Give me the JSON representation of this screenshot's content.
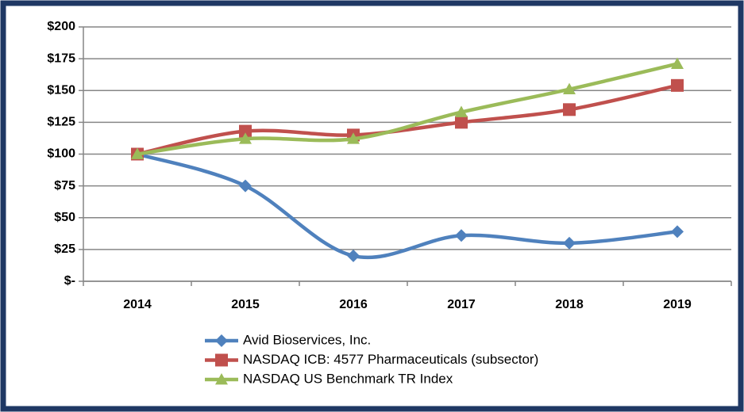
{
  "chart_data": {
    "type": "line",
    "categories": [
      "2014",
      "2015",
      "2016",
      "2017",
      "2018",
      "2019"
    ],
    "series": [
      {
        "name": "Avid Bioservices, Inc.",
        "color": "#4f81bd",
        "marker": "diamond",
        "values": [
          100,
          75,
          20,
          36,
          30,
          39
        ]
      },
      {
        "name": "NASDAQ ICB: 4577 Pharmaceuticals (subsector)",
        "color": "#c0504d",
        "marker": "square",
        "values": [
          100,
          118,
          115,
          125,
          135,
          154
        ]
      },
      {
        "name": "NASDAQ US Benchmark TR Index",
        "color": "#9bbb59",
        "marker": "triangle",
        "values": [
          100,
          112,
          112,
          133,
          151,
          171
        ]
      }
    ],
    "ylim": [
      0,
      200
    ],
    "yticks": [
      {
        "value": 0,
        "label": "$-"
      },
      {
        "value": 25,
        "label": "$25"
      },
      {
        "value": 50,
        "label": "$50"
      },
      {
        "value": 75,
        "label": "$75"
      },
      {
        "value": 100,
        "label": "$100"
      },
      {
        "value": 125,
        "label": "$125"
      },
      {
        "value": 150,
        "label": "$150"
      },
      {
        "value": 175,
        "label": "$175"
      },
      {
        "value": 200,
        "label": "$200"
      }
    ],
    "grid": true,
    "legend": "bottom"
  }
}
